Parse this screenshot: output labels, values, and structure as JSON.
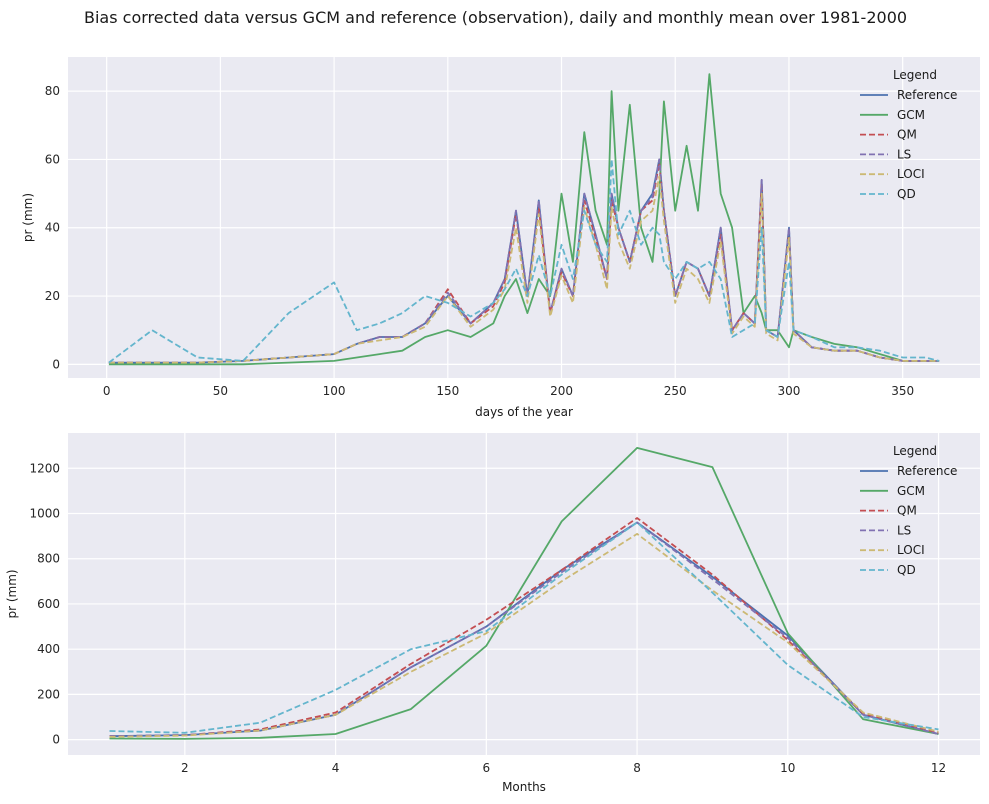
{
  "figure": {
    "title": "Bias corrected data versus GCM and reference (observation), daily and monthly mean over 1981-2000"
  },
  "colors": {
    "background": "#EAEAF2",
    "grid": "#FFFFFF",
    "Reference": "#4C72B0",
    "GCM": "#55A868",
    "QM": "#C44E52",
    "LS": "#8172B2",
    "LOCI": "#CCB974",
    "QD": "#64B5CD"
  },
  "chart_data": [
    {
      "type": "line",
      "xlabel": "days of the year",
      "ylabel": "pr (mm)",
      "xlim": [
        -17,
        384
      ],
      "ylim": [
        -4,
        90
      ],
      "xticks": [
        0,
        50,
        100,
        150,
        200,
        250,
        300,
        350
      ],
      "yticks": [
        0,
        20,
        40,
        60,
        80
      ],
      "grid": true,
      "legend": {
        "title": "Legend",
        "placement": "top-right"
      },
      "series": [
        {
          "name": "Reference",
          "style": "solid"
        },
        {
          "name": "GCM",
          "style": "solid"
        },
        {
          "name": "QM",
          "style": "dashed"
        },
        {
          "name": "LS",
          "style": "dashed"
        },
        {
          "name": "LOCI",
          "style": "dashed"
        },
        {
          "name": "QD",
          "style": "dashed"
        }
      ],
      "x": [
        1,
        20,
        40,
        60,
        80,
        100,
        110,
        120,
        130,
        140,
        150,
        160,
        170,
        175,
        180,
        185,
        190,
        195,
        200,
        205,
        210,
        215,
        220,
        222,
        225,
        230,
        235,
        240,
        243,
        245,
        250,
        255,
        260,
        265,
        270,
        275,
        280,
        285,
        288,
        290,
        295,
        300,
        302,
        310,
        320,
        330,
        340,
        350,
        360,
        366
      ],
      "values": {
        "Reference": [
          0.5,
          0.5,
          0.5,
          1,
          2,
          3,
          6,
          8,
          8,
          12,
          20,
          12,
          18,
          25,
          45,
          20,
          48,
          15,
          28,
          20,
          50,
          38,
          25,
          50,
          40,
          30,
          45,
          50,
          60,
          45,
          20,
          30,
          28,
          20,
          40,
          10,
          15,
          12,
          54,
          10,
          8,
          40,
          10,
          5,
          4,
          4,
          2,
          1,
          1,
          1
        ],
        "GCM": [
          0,
          0,
          0,
          0,
          0.5,
          1,
          2,
          3,
          4,
          8,
          10,
          8,
          12,
          20,
          25,
          15,
          25,
          20,
          50,
          30,
          68,
          45,
          35,
          80,
          45,
          76,
          40,
          30,
          50,
          77,
          45,
          64,
          45,
          85,
          50,
          40,
          15,
          20,
          15,
          10,
          10,
          5,
          10,
          8,
          6,
          5,
          3,
          1,
          1,
          1
        ],
        "QM": [
          0.5,
          0.5,
          0.5,
          1,
          2,
          3,
          6,
          8,
          8,
          12,
          22,
          12,
          17,
          24,
          44,
          20,
          46,
          15,
          27,
          20,
          48,
          37,
          25,
          48,
          40,
          30,
          45,
          48,
          59,
          45,
          20,
          30,
          28,
          20,
          38,
          10,
          15,
          12,
          53,
          10,
          8,
          39,
          10,
          5,
          4,
          4,
          2,
          1,
          1,
          1
        ],
        "LS": [
          0.5,
          0.5,
          0.5,
          1,
          2,
          3,
          6,
          8,
          8,
          12,
          21,
          12,
          18,
          25,
          45,
          20,
          48,
          15,
          28,
          20,
          50,
          38,
          25,
          50,
          40,
          30,
          45,
          49,
          60,
          45,
          20,
          30,
          28,
          20,
          40,
          10,
          15,
          12,
          54,
          10,
          8,
          40,
          10,
          5,
          4,
          4,
          2,
          1,
          1,
          1
        ],
        "LOCI": [
          0.5,
          0.5,
          0.5,
          1,
          2,
          3,
          6,
          7,
          8,
          11,
          20,
          11,
          16,
          22,
          40,
          18,
          44,
          14,
          26,
          18,
          46,
          35,
          22,
          46,
          36,
          28,
          42,
          45,
          55,
          42,
          18,
          28,
          25,
          18,
          36,
          9,
          14,
          11,
          50,
          9,
          7,
          37,
          9,
          5,
          4,
          4,
          2,
          1,
          1,
          1
        ],
        "QD": [
          0.5,
          10,
          2,
          1,
          15,
          24,
          10,
          12,
          15,
          20,
          18,
          14,
          18,
          22,
          28,
          20,
          32,
          20,
          35,
          25,
          45,
          35,
          30,
          60,
          38,
          45,
          35,
          40,
          38,
          30,
          25,
          30,
          28,
          30,
          25,
          8,
          10,
          12,
          40,
          10,
          8,
          30,
          10,
          8,
          5,
          5,
          4,
          2,
          2,
          1
        ]
      }
    },
    {
      "type": "line",
      "xlabel": "Months",
      "ylabel": "pr (mm)",
      "xlim": [
        0.45,
        12.55
      ],
      "ylim": [
        -68,
        1356
      ],
      "xticks": [
        2,
        4,
        6,
        8,
        10,
        12
      ],
      "yticks": [
        0,
        200,
        400,
        600,
        800,
        1000,
        1200
      ],
      "grid": true,
      "legend": {
        "title": "Legend",
        "placement": "top-right"
      },
      "series": [
        {
          "name": "Reference",
          "style": "solid"
        },
        {
          "name": "GCM",
          "style": "solid"
        },
        {
          "name": "QM",
          "style": "dashed"
        },
        {
          "name": "LS",
          "style": "dashed"
        },
        {
          "name": "LOCI",
          "style": "dashed"
        },
        {
          "name": "QD",
          "style": "dashed"
        }
      ],
      "x": [
        1,
        2,
        3,
        4,
        5,
        6,
        7,
        8,
        9,
        10,
        11,
        12
      ],
      "values": {
        "Reference": [
          15,
          20,
          40,
          110,
          320,
          500,
          750,
          960,
          720,
          460,
          110,
          25
        ],
        "GCM": [
          5,
          3,
          8,
          25,
          135,
          415,
          965,
          1290,
          1205,
          470,
          90,
          25
        ],
        "QM": [
          15,
          20,
          45,
          120,
          335,
          530,
          750,
          980,
          730,
          440,
          115,
          30
        ],
        "LS": [
          15,
          20,
          40,
          110,
          320,
          500,
          740,
          960,
          710,
          450,
          110,
          25
        ],
        "LOCI": [
          12,
          18,
          40,
          110,
          300,
          470,
          700,
          910,
          660,
          430,
          120,
          35
        ],
        "QD": [
          38,
          30,
          75,
          220,
          400,
          480,
          730,
          960,
          650,
          330,
          100,
          45
        ]
      }
    }
  ]
}
